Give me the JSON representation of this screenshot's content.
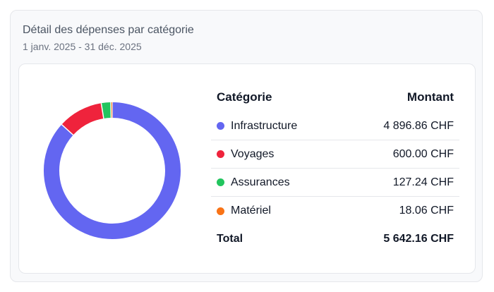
{
  "card": {
    "title": "Détail des dépenses par catégorie",
    "date_range": "1 janv. 2025 - 31 déc. 2025"
  },
  "table": {
    "col_category": "Catégorie",
    "col_amount": "Montant",
    "rows": [
      {
        "label": "Infrastructure",
        "amount": "4 896.86 CHF",
        "value": 4896.86,
        "color": "#6366f1"
      },
      {
        "label": "Voyages",
        "amount": "600.00 CHF",
        "value": 600.0,
        "color": "#ef233c"
      },
      {
        "label": "Assurances",
        "amount": "127.24 CHF",
        "value": 127.24,
        "color": "#22c55e"
      },
      {
        "label": "Matériel",
        "amount": "18.06 CHF",
        "value": 18.06,
        "color": "#f97316"
      }
    ],
    "total_label": "Total",
    "total_amount": "5 642.16 CHF"
  }
}
